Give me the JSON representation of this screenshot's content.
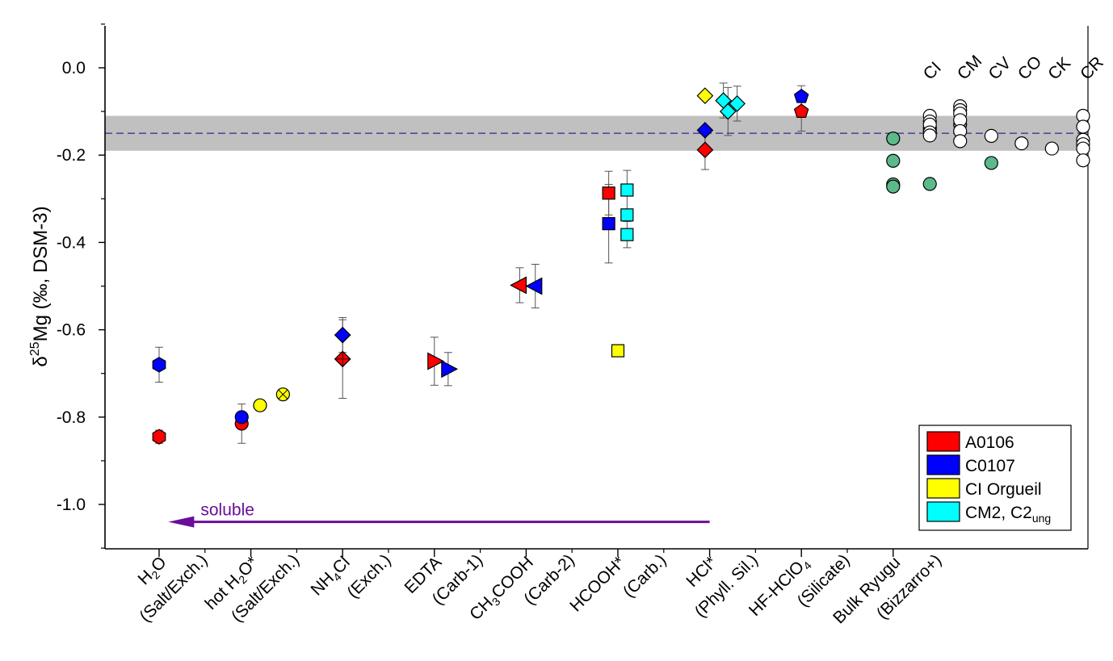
{
  "chart_data": {
    "type": "scatter",
    "ylabel": "δ25Mg (‰, DSM-3)",
    "ylabel_parts": {
      "delta": "δ",
      "sup": "25",
      "rest": "Mg (‰, DSM-3)"
    },
    "ylim": [
      -1.1,
      0.1
    ],
    "yticks": [
      {
        "v": 0.0,
        "label": "0.0"
      },
      {
        "v": -0.2,
        "label": "-0.2"
      },
      {
        "v": -0.4,
        "label": "-0.4"
      },
      {
        "v": -0.6,
        "label": "-0.6"
      },
      {
        "v": -0.8,
        "label": "-0.8"
      },
      {
        "v": -1.0,
        "label": "-1.0"
      }
    ],
    "categories": [
      {
        "x": 1,
        "line1": [
          [
            "H"
          ],
          [
            "2",
            "sub"
          ],
          [
            "O"
          ]
        ],
        "line2": "(Salt/Exch.)"
      },
      {
        "x": 2,
        "line1": [
          [
            "hot H"
          ],
          [
            "2",
            "sub"
          ],
          [
            "O*"
          ]
        ],
        "line2": "(Salt/Exch.)"
      },
      {
        "x": 3,
        "line1": [
          [
            "NH"
          ],
          [
            "4",
            "sub"
          ],
          [
            "Cl"
          ]
        ],
        "line2": "(Exch.)"
      },
      {
        "x": 4,
        "line1": [
          [
            "EDTA"
          ]
        ],
        "line2": "(Carb-1)"
      },
      {
        "x": 5,
        "line1": [
          [
            "CH"
          ],
          [
            "3",
            "sub"
          ],
          [
            "COOH"
          ]
        ],
        "line2": "(Carb-2)"
      },
      {
        "x": 6,
        "line1": [
          [
            "HCOOH*"
          ]
        ],
        "line2": "(Carb.)"
      },
      {
        "x": 7,
        "line1": [
          [
            "HCl*"
          ]
        ],
        "line2": "(Phyll. Sil.)"
      },
      {
        "x": 8,
        "line1": [
          [
            "HF-HClO"
          ],
          [
            "4",
            "sub"
          ]
        ],
        "line2": "(Silicate)"
      },
      {
        "x": 9,
        "line1": [
          [
            "Bulk Ryugu"
          ]
        ],
        "line2": "(Bizzarro+)"
      }
    ],
    "reference_band": {
      "center": -0.15,
      "low": -0.19,
      "high": -0.11
    },
    "group_labels": [
      {
        "x": 9.35,
        "text": "CI"
      },
      {
        "x": 9.72,
        "text": "CM"
      },
      {
        "x": 10.06,
        "text": "CV"
      },
      {
        "x": 10.38,
        "text": "CO"
      },
      {
        "x": 10.71,
        "text": "CK"
      },
      {
        "x": 11.06,
        "text": "CR"
      }
    ],
    "arrow": {
      "from_x": 7.0,
      "to_x": 1.1,
      "y": -1.04,
      "label": "soluble",
      "color": "#6a0e9a"
    },
    "colors": {
      "A0106": "#ff0000",
      "C0107": "#0000ff",
      "CI Orgueil": "#ffff00",
      "CM2, C2ung": "#00ffff",
      "bulk_green": "#5cb98a",
      "band": "#c0c0c0"
    },
    "legend": {
      "placement": "bottom-right",
      "entries": [
        {
          "label": "A0106",
          "color": "#ff0000",
          "sub": ""
        },
        {
          "label": "C0107",
          "color": "#0000ff",
          "sub": ""
        },
        {
          "label": "CI Orgueil",
          "color": "#ffff00",
          "sub": ""
        },
        {
          "label": "CM2, C2",
          "color": "#00ffff",
          "sub": "ung"
        }
      ]
    },
    "series": [
      {
        "name": "A0106",
        "color": "#ff0000",
        "points": [
          {
            "x": 1.0,
            "y": -0.845,
            "err": 0.015,
            "marker": "hexagon"
          },
          {
            "x": 1.9,
            "y": -0.815,
            "err": 0.045,
            "marker": "circle"
          },
          {
            "x": 3.0,
            "y": -0.667,
            "err": 0.09,
            "marker": "diamond-plus"
          },
          {
            "x": 4.0,
            "y": -0.672,
            "err": 0.055,
            "marker": "triangle-right"
          },
          {
            "x": 4.93,
            "y": -0.498,
            "err": 0.04,
            "marker": "triangle-left"
          },
          {
            "x": 5.9,
            "y": -0.287,
            "err": 0.05,
            "marker": "square"
          },
          {
            "x": 6.95,
            "y": -0.188,
            "err": 0.045,
            "marker": "diamond"
          },
          {
            "x": 8.0,
            "y": -0.1,
            "err": 0.045,
            "marker": "pentagon"
          }
        ]
      },
      {
        "name": "C0107",
        "color": "#0000ff",
        "points": [
          {
            "x": 1.0,
            "y": -0.68,
            "err": 0.04,
            "marker": "hexagon"
          },
          {
            "x": 1.9,
            "y": -0.8,
            "err": 0.0,
            "marker": "circle"
          },
          {
            "x": 3.0,
            "y": -0.612,
            "err": 0.04,
            "marker": "diamond"
          },
          {
            "x": 4.15,
            "y": -0.69,
            "err": 0.038,
            "marker": "triangle-right"
          },
          {
            "x": 5.1,
            "y": -0.5,
            "err": 0.05,
            "marker": "triangle-left"
          },
          {
            "x": 5.9,
            "y": -0.357,
            "err": 0.09,
            "marker": "square"
          },
          {
            "x": 6.95,
            "y": -0.143,
            "err": 0.0,
            "marker": "diamond"
          },
          {
            "x": 8.0,
            "y": -0.066,
            "err": 0.025,
            "marker": "pentagon"
          }
        ]
      },
      {
        "name": "CI Orgueil",
        "color": "#ffff00",
        "points": [
          {
            "x": 2.1,
            "y": -0.773,
            "err": 0.0,
            "marker": "circle"
          },
          {
            "x": 2.35,
            "y": -0.748,
            "err": 0.0,
            "marker": "circle-x"
          },
          {
            "x": 6.0,
            "y": -0.648,
            "err": 0.0,
            "marker": "square"
          },
          {
            "x": 6.95,
            "y": -0.064,
            "err": 0.0,
            "marker": "diamond"
          }
        ]
      },
      {
        "name": "CM2, C2ung",
        "color": "#00ffff",
        "points": [
          {
            "x": 6.1,
            "y": -0.28,
            "err": 0.045,
            "marker": "square"
          },
          {
            "x": 6.1,
            "y": -0.337,
            "err": 0.0,
            "marker": "square"
          },
          {
            "x": 6.1,
            "y": -0.382,
            "err": 0.03,
            "marker": "square"
          },
          {
            "x": 7.15,
            "y": -0.075,
            "err": 0.04,
            "marker": "diamond"
          },
          {
            "x": 7.2,
            "y": -0.1,
            "err": 0.055,
            "marker": "diamond"
          },
          {
            "x": 7.3,
            "y": -0.082,
            "err": 0.04,
            "marker": "diamond"
          }
        ]
      },
      {
        "name": "Bulk Ryugu",
        "color": "#5cb98a",
        "points": [
          {
            "x": 9.0,
            "y": -0.162,
            "err": 0.0,
            "marker": "circle"
          },
          {
            "x": 9.0,
            "y": -0.213,
            "err": 0.0,
            "marker": "circle"
          },
          {
            "x": 9.0,
            "y": -0.267,
            "err": 0.0,
            "marker": "circle"
          },
          {
            "x": 9.0,
            "y": -0.272,
            "err": 0.0,
            "marker": "circle"
          },
          {
            "x": 9.4,
            "y": -0.137,
            "err": 0.0,
            "marker": "circle"
          },
          {
            "x": 9.4,
            "y": -0.143,
            "err": 0.0,
            "marker": "circle"
          },
          {
            "x": 9.4,
            "y": -0.266,
            "err": 0.0,
            "marker": "circle"
          },
          {
            "x": 9.73,
            "y": -0.13,
            "err": 0.0,
            "marker": "circle"
          },
          {
            "x": 10.07,
            "y": -0.218,
            "err": 0.0,
            "marker": "circle"
          }
        ]
      },
      {
        "name": "Carbonaceous chondrites",
        "color": "#ffffff",
        "points": [
          {
            "x": 9.4,
            "y": -0.11,
            "err": 0.0,
            "marker": "circle"
          },
          {
            "x": 9.4,
            "y": -0.123,
            "err": 0.0,
            "marker": "circle"
          },
          {
            "x": 9.4,
            "y": -0.13,
            "err": 0.0,
            "marker": "circle"
          },
          {
            "x": 9.4,
            "y": -0.148,
            "err": 0.0,
            "marker": "circle"
          },
          {
            "x": 9.4,
            "y": -0.155,
            "err": 0.0,
            "marker": "circle"
          },
          {
            "x": 9.73,
            "y": -0.088,
            "err": 0.0,
            "marker": "circle"
          },
          {
            "x": 9.73,
            "y": -0.097,
            "err": 0.0,
            "marker": "circle"
          },
          {
            "x": 9.73,
            "y": -0.105,
            "err": 0.0,
            "marker": "circle"
          },
          {
            "x": 9.73,
            "y": -0.12,
            "err": 0.0,
            "marker": "circle"
          },
          {
            "x": 9.73,
            "y": -0.145,
            "err": 0.0,
            "marker": "circle"
          },
          {
            "x": 9.73,
            "y": -0.168,
            "err": 0.0,
            "marker": "circle"
          },
          {
            "x": 10.07,
            "y": -0.156,
            "err": 0.0,
            "marker": "circle"
          },
          {
            "x": 10.4,
            "y": -0.173,
            "err": 0.0,
            "marker": "circle"
          },
          {
            "x": 10.73,
            "y": -0.185,
            "err": 0.0,
            "marker": "circle"
          },
          {
            "x": 11.07,
            "y": -0.11,
            "err": 0.0,
            "marker": "circle"
          },
          {
            "x": 11.07,
            "y": -0.135,
            "err": 0.0,
            "marker": "circle"
          },
          {
            "x": 11.07,
            "y": -0.165,
            "err": 0.0,
            "marker": "circle"
          },
          {
            "x": 11.07,
            "y": -0.175,
            "err": 0.0,
            "marker": "circle"
          },
          {
            "x": 11.07,
            "y": -0.185,
            "err": 0.0,
            "marker": "circle"
          },
          {
            "x": 11.07,
            "y": -0.212,
            "err": 0.0,
            "marker": "circle"
          }
        ]
      }
    ]
  }
}
